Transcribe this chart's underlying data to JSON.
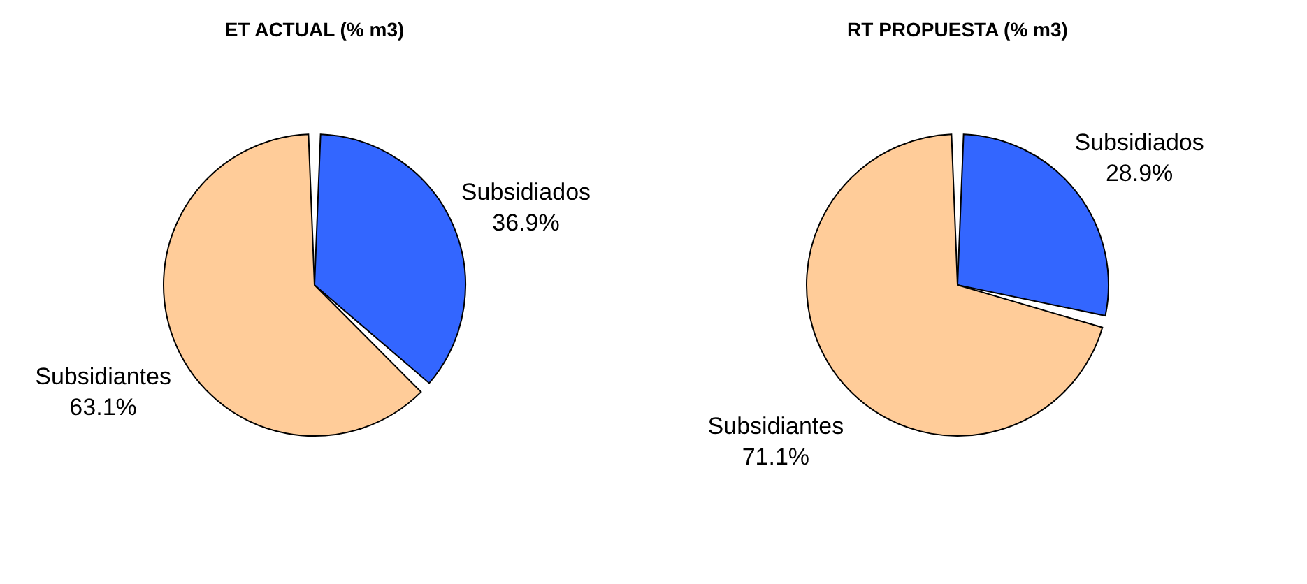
{
  "chart_data": [
    {
      "type": "pie",
      "title": "ET ACTUAL (% m3)",
      "categories": [
        "Subsidiados",
        "Subsidiantes"
      ],
      "values": [
        36.9,
        63.1
      ],
      "colors": [
        "#3366ff",
        "#ffcc99"
      ],
      "value_labels": [
        "36.9%",
        "63.1%"
      ],
      "legend": false
    },
    {
      "type": "pie",
      "title": "RT PROPUESTA (% m3)",
      "categories": [
        "Subsidiados",
        "Subsidiantes"
      ],
      "values": [
        28.9,
        71.1
      ],
      "colors": [
        "#3366ff",
        "#ffcc99"
      ],
      "value_labels": [
        "28.9%",
        "71.1%"
      ],
      "legend": false
    }
  ]
}
